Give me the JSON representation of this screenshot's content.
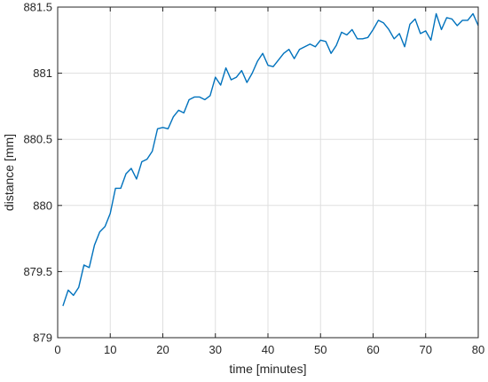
{
  "chart_data": {
    "type": "line",
    "title": "",
    "xlabel": "time [minutes]",
    "ylabel": "distance [mm]",
    "xlim": [
      0,
      80
    ],
    "ylim": [
      879,
      881.5
    ],
    "xticks": [
      0,
      10,
      20,
      30,
      40,
      50,
      60,
      70,
      80
    ],
    "yticks": [
      879,
      879.5,
      880,
      880.5,
      881,
      881.5
    ],
    "xtick_labels": [
      "0",
      "10",
      "20",
      "30",
      "40",
      "50",
      "60",
      "70",
      "80"
    ],
    "ytick_labels": [
      "879",
      "879.5",
      "880",
      "880.5",
      "881",
      "881.5"
    ],
    "grid": true,
    "series": [
      {
        "color": "#0072bd",
        "x": [
          1,
          2,
          3,
          4,
          5,
          6,
          7,
          8,
          9,
          10,
          11,
          12,
          13,
          14,
          15,
          16,
          17,
          18,
          19,
          20,
          21,
          22,
          23,
          24,
          25,
          26,
          27,
          28,
          29,
          30,
          31,
          32,
          33,
          34,
          35,
          36,
          37,
          38,
          39,
          40,
          41,
          42,
          43,
          44,
          45,
          46,
          47,
          48,
          49,
          50,
          51,
          52,
          53,
          54,
          55,
          56,
          57,
          58,
          59,
          60,
          61,
          62,
          63,
          64,
          65,
          66,
          67,
          68,
          69,
          70,
          71,
          72,
          73,
          74,
          75,
          76,
          77,
          78,
          79,
          80
        ],
        "y": [
          879.24,
          879.36,
          879.32,
          879.38,
          879.55,
          879.53,
          879.7,
          879.8,
          879.84,
          879.94,
          880.13,
          880.13,
          880.24,
          880.28,
          880.2,
          880.33,
          880.35,
          880.41,
          880.58,
          880.59,
          880.58,
          880.67,
          880.72,
          880.7,
          880.8,
          880.82,
          880.82,
          880.8,
          880.83,
          880.97,
          880.91,
          881.04,
          880.95,
          880.97,
          881.02,
          880.93,
          881.0,
          881.09,
          881.15,
          881.06,
          881.05,
          881.1,
          881.15,
          881.18,
          881.11,
          881.18,
          881.2,
          881.22,
          881.2,
          881.25,
          881.24,
          881.15,
          881.21,
          881.31,
          881.29,
          881.33,
          881.26,
          881.26,
          881.27,
          881.33,
          881.4,
          881.38,
          881.33,
          881.26,
          881.3,
          881.2,
          881.37,
          881.41,
          881.3,
          881.32,
          881.25,
          881.45,
          881.33,
          881.42,
          881.41,
          881.36,
          881.4,
          881.4,
          881.45,
          881.36
        ]
      }
    ]
  }
}
